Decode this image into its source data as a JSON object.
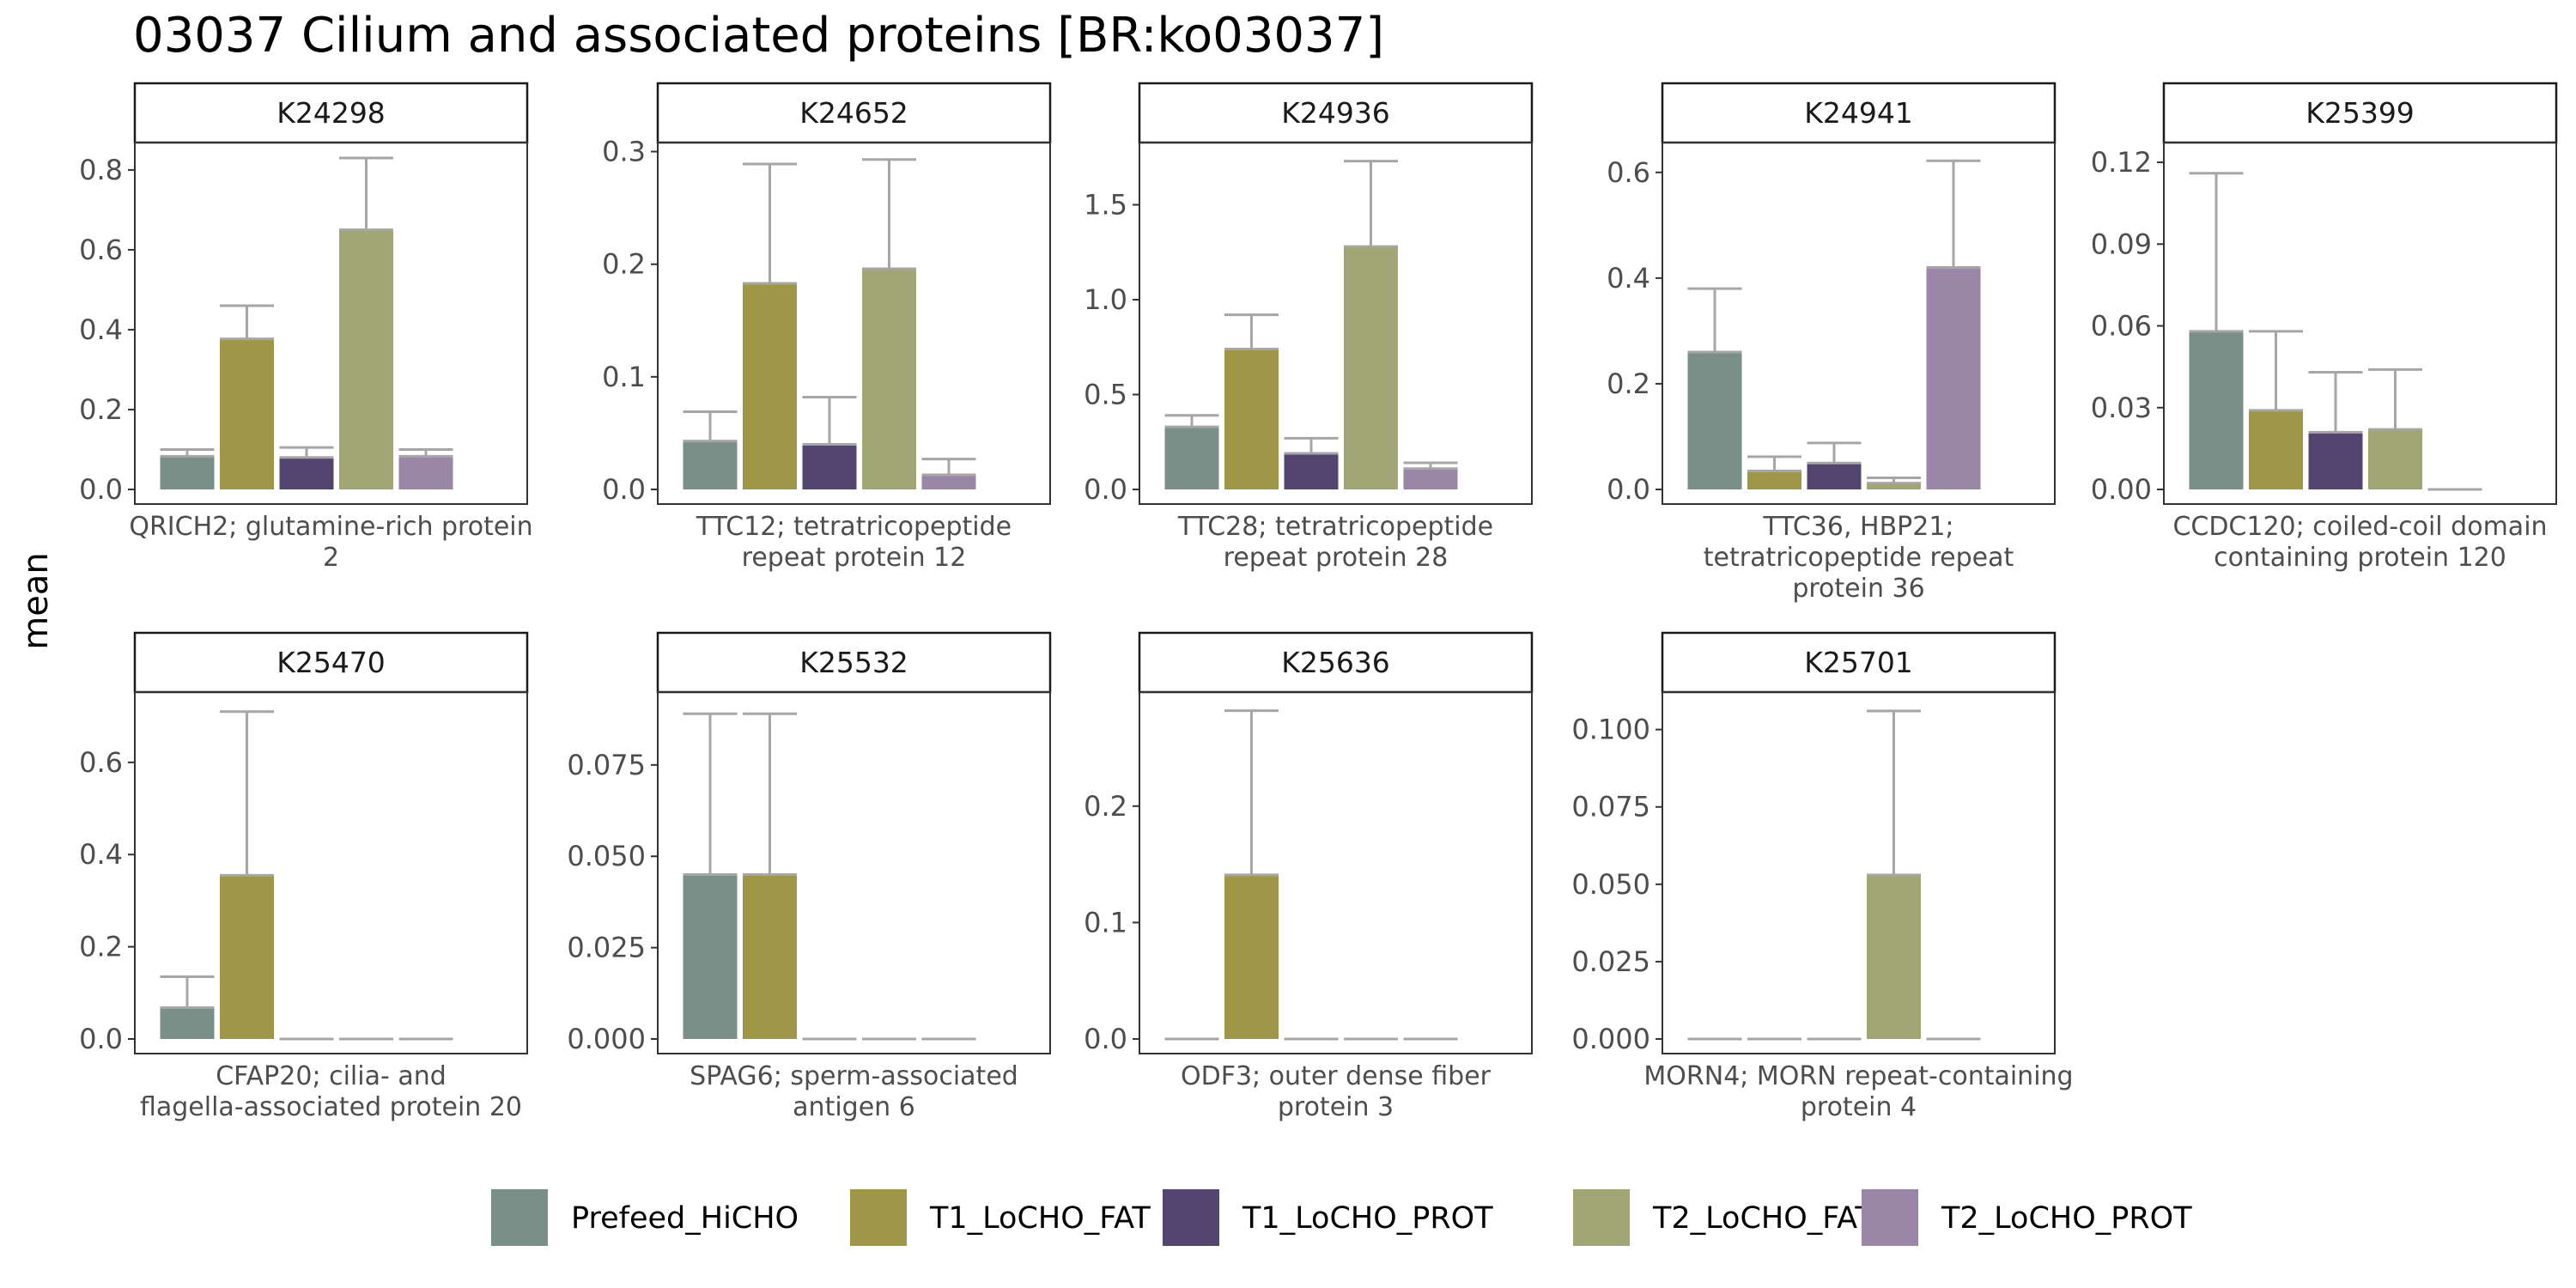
{
  "chart_data": {
    "type": "bar",
    "title": "03037 Cilium and associated proteins [BR:ko03037]",
    "ylabel": "mean",
    "error_bars": true,
    "legend_position": "bottom",
    "legend": [
      {
        "name": "Prefeed_HiCHO",
        "color": "#7A8F87"
      },
      {
        "name": "T1_LoCHO_FAT",
        "color": "#9E9748"
      },
      {
        "name": "T1_LoCHO_PROT",
        "color": "#544470"
      },
      {
        "name": "T2_LoCHO_FAT",
        "color": "#A2A574"
      },
      {
        "name": "T2_LoCHO_PROT",
        "color": "#9A86A6"
      }
    ],
    "panels": [
      {
        "id": "K24298",
        "label": [
          "QRICH2; glutamine-rich protein",
          "2"
        ],
        "ylim": [
          0,
          0.86
        ],
        "yticks": [
          "0.0",
          "0.2",
          "0.4",
          "0.6",
          "0.8"
        ],
        "ytick_values": [
          0,
          0.2,
          0.4,
          0.6,
          0.8
        ],
        "values": [
          0.083,
          0.377,
          0.08,
          0.65,
          0.083
        ],
        "errors": [
          0.1,
          0.46,
          0.105,
          0.83,
          0.1
        ]
      },
      {
        "id": "K24652",
        "label": [
          "TTC12; tetratricopeptide",
          "repeat protein 12"
        ],
        "ylim": [
          0,
          0.305
        ],
        "yticks": [
          "0.0",
          "0.1",
          "0.2",
          "0.3"
        ],
        "ytick_values": [
          0,
          0.1,
          0.2,
          0.3
        ],
        "values": [
          0.043,
          0.183,
          0.04,
          0.196,
          0.013
        ],
        "errors": [
          0.069,
          0.289,
          0.082,
          0.293,
          0.027
        ]
      },
      {
        "id": "K24936",
        "label": [
          "TTC28; tetratricopeptide",
          "repeat protein 28"
        ],
        "ylim": [
          0,
          1.81
        ],
        "yticks": [
          "0.0",
          "0.5",
          "1.0",
          "1.5"
        ],
        "ytick_values": [
          0,
          0.5,
          1.0,
          1.5
        ],
        "values": [
          0.33,
          0.74,
          0.19,
          1.28,
          0.11
        ],
        "errors": [
          0.39,
          0.92,
          0.27,
          1.73,
          0.14
        ]
      },
      {
        "id": "K24941",
        "label": [
          "TTC36, HBP21;",
          "tetratricopeptide repeat",
          "protein 36"
        ],
        "ylim": [
          0,
          0.65
        ],
        "yticks": [
          "0.0",
          "0.2",
          "0.4",
          "0.6"
        ],
        "ytick_values": [
          0,
          0.2,
          0.4,
          0.6
        ],
        "values": [
          0.26,
          0.035,
          0.05,
          0.012,
          0.42
        ],
        "errors": [
          0.38,
          0.062,
          0.088,
          0.022,
          0.622
        ]
      },
      {
        "id": "K25399",
        "label": [
          "CCDC120; coiled-coil domain",
          "containing protein 120"
        ],
        "ylim": [
          0,
          0.126
        ],
        "yticks": [
          "0.00",
          "0.03",
          "0.06",
          "0.09",
          "0.12"
        ],
        "ytick_values": [
          0,
          0.03,
          0.06,
          0.09,
          0.12
        ],
        "values": [
          0.058,
          0.029,
          0.021,
          0.022,
          0.0
        ],
        "errors": [
          0.116,
          0.058,
          0.043,
          0.044,
          0.0
        ]
      },
      {
        "id": "K25470",
        "label": [
          "CFAP20; cilia- and",
          "flagella-associated protein 20"
        ],
        "ylim": [
          0,
          0.745
        ],
        "yticks": [
          "0.0",
          "0.2",
          "0.4",
          "0.6"
        ],
        "ytick_values": [
          0,
          0.2,
          0.4,
          0.6
        ],
        "values": [
          0.068,
          0.355,
          0.0,
          0.0,
          0.0
        ],
        "errors": [
          0.135,
          0.71,
          0.0,
          0.0,
          0.0
        ]
      },
      {
        "id": "K25532",
        "label": [
          "SPAG6; sperm-associated",
          "antigen 6"
        ],
        "ylim": [
          0,
          0.094
        ],
        "yticks": [
          "0.000",
          "0.025",
          "0.050",
          "0.075"
        ],
        "ytick_values": [
          0,
          0.025,
          0.05,
          0.075
        ],
        "values": [
          0.045,
          0.045,
          0.0,
          0.0,
          0.0
        ],
        "errors": [
          0.089,
          0.089,
          0.0,
          0.0,
          0.0
        ]
      },
      {
        "id": "K25636",
        "label": [
          "ODF3; outer dense fiber",
          "protein 3"
        ],
        "ylim": [
          0,
          0.295
        ],
        "yticks": [
          "0.0",
          "0.1",
          "0.2"
        ],
        "ytick_values": [
          0,
          0.1,
          0.2
        ],
        "values": [
          0.0,
          0.141,
          0.0,
          0.0,
          0.0
        ],
        "errors": [
          0.0,
          0.282,
          0.0,
          0.0,
          0.0
        ]
      },
      {
        "id": "K25701",
        "label": [
          "MORN4; MORN repeat-containing",
          "protein 4"
        ],
        "ylim": [
          0,
          0.111
        ],
        "yticks": [
          "0.000",
          "0.025",
          "0.050",
          "0.075",
          "0.100"
        ],
        "ytick_values": [
          0,
          0.025,
          0.05,
          0.075,
          0.1
        ],
        "values": [
          0.0,
          0.0,
          0.0,
          0.053,
          0.0
        ],
        "errors": [
          0.0,
          0.0,
          0.0,
          0.106,
          0.0
        ]
      }
    ]
  }
}
